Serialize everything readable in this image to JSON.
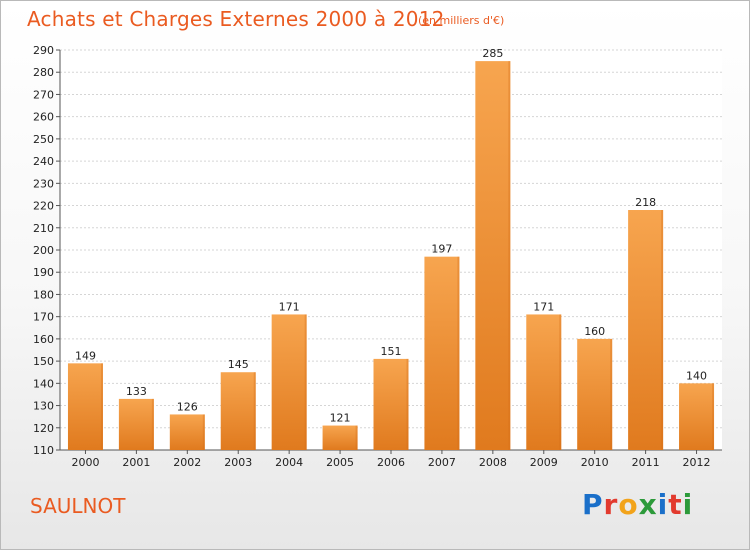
{
  "header": {
    "title": "Achats et Charges Externes 2000 à 2012",
    "subtitle": "(en milliers d'€)"
  },
  "footer": {
    "place": "SAULNOT",
    "logo_text": "Proxiti"
  },
  "colors": {
    "accent": "#ea5b21",
    "bar_top": "#f7a54f",
    "bar_bottom": "#e07a1e"
  },
  "chart_data": {
    "type": "bar",
    "categories": [
      "2000",
      "2001",
      "2002",
      "2003",
      "2004",
      "2005",
      "2006",
      "2007",
      "2008",
      "2009",
      "2010",
      "2011",
      "2012"
    ],
    "values": [
      149,
      133,
      126,
      145,
      171,
      121,
      151,
      197,
      285,
      171,
      160,
      218,
      140
    ],
    "title": "Achats et Charges Externes 2000 à 2012",
    "ylim": [
      110,
      290
    ],
    "yticks": [
      110,
      120,
      130,
      140,
      150,
      160,
      170,
      180,
      190,
      200,
      210,
      220,
      230,
      240,
      250,
      260,
      270,
      280,
      290
    ],
    "grid": true
  }
}
